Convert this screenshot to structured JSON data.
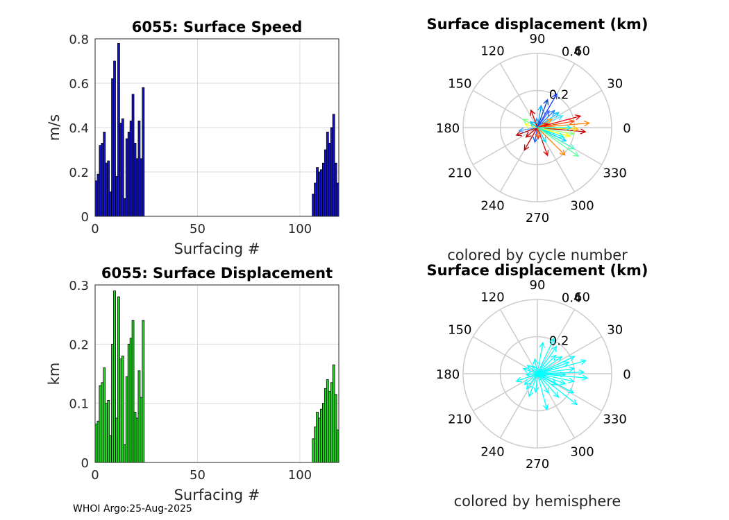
{
  "footer": "WHOI Argo:25-Aug-2025",
  "colors": {
    "speed_bar": "#1414c8",
    "disp_bar": "#22dd22",
    "hemisphere": "#00ffff"
  },
  "chart_data": [
    {
      "type": "bar",
      "title": "6055: Surface Speed",
      "xlabel": "Surfacing #",
      "ylabel": "m/s",
      "xlim": [
        0,
        119
      ],
      "ylim": [
        0,
        0.8
      ],
      "xticks": [
        0,
        50,
        100
      ],
      "yticks": [
        0,
        0.2,
        0.4,
        0.6,
        0.8
      ],
      "xtick_labels": [
        "0",
        "50",
        "100"
      ],
      "ytick_labels": [
        "0",
        "0.2",
        "0.4",
        "0.6",
        "0.8"
      ],
      "x": [
        1,
        2,
        3,
        4,
        5,
        6,
        7,
        8,
        9,
        10,
        11,
        12,
        13,
        14,
        15,
        16,
        17,
        18,
        19,
        20,
        21,
        22,
        23,
        24,
        107,
        108,
        109,
        110,
        111,
        112,
        113,
        114,
        115,
        116,
        117,
        118,
        119
      ],
      "values": [
        0.16,
        0.19,
        0.32,
        0.33,
        0.38,
        0.24,
        0.25,
        0.11,
        0.62,
        0.7,
        0.18,
        0.78,
        0.42,
        0.44,
        0.08,
        0.35,
        0.38,
        0.43,
        0.55,
        0.33,
        0.26,
        0.43,
        0.26,
        0.58,
        0.1,
        0.15,
        0.22,
        0.2,
        0.21,
        0.24,
        0.3,
        0.38,
        0.33,
        0.4,
        0.46,
        0.24,
        0.15
      ]
    },
    {
      "type": "bar",
      "title": "6055: Surface Displacement",
      "xlabel": "Surfacing #",
      "ylabel": "km",
      "xlim": [
        0,
        119
      ],
      "ylim": [
        0,
        0.3
      ],
      "xticks": [
        0,
        50,
        100
      ],
      "yticks": [
        0,
        0.1,
        0.2,
        0.3
      ],
      "xtick_labels": [
        "0",
        "50",
        "100"
      ],
      "ytick_labels": [
        "0",
        "0.1",
        "0.2",
        "0.3"
      ],
      "x": [
        1,
        2,
        3,
        4,
        5,
        6,
        7,
        8,
        9,
        10,
        11,
        12,
        13,
        14,
        15,
        16,
        17,
        18,
        19,
        20,
        21,
        22,
        23,
        24,
        107,
        108,
        109,
        110,
        111,
        112,
        113,
        114,
        115,
        116,
        117,
        118,
        119
      ],
      "values": [
        0.065,
        0.07,
        0.13,
        0.135,
        0.16,
        0.1,
        0.105,
        0.045,
        0.2,
        0.29,
        0.075,
        0.28,
        0.175,
        0.18,
        0.03,
        0.145,
        0.2,
        0.21,
        0.24,
        0.085,
        0.075,
        0.155,
        0.11,
        0.24,
        0.04,
        0.06,
        0.085,
        0.075,
        0.09,
        0.1,
        0.125,
        0.14,
        0.12,
        0.135,
        0.165,
        0.115,
        0.055
      ]
    },
    {
      "type": "polar",
      "title": "Surface displacement (km)",
      "caption": "colored by cycle number",
      "rlim": [
        0,
        0.4
      ],
      "r_tick_labels": [
        "0.2",
        "0.4"
      ],
      "theta_labels": [
        "0",
        "30",
        "60",
        "90",
        "120",
        "150",
        "180",
        "210",
        "240",
        "270",
        "300",
        "330"
      ],
      "arrows": [
        {
          "theta": 60,
          "r": 0.21,
          "color": "#1040ff"
        },
        {
          "theta": 95,
          "r": 0.05,
          "color": "#20a0ff"
        },
        {
          "theta": 110,
          "r": 0.1,
          "color": "#c00000"
        },
        {
          "theta": 55,
          "r": 0.11,
          "color": "#4060ff"
        },
        {
          "theta": 45,
          "r": 0.13,
          "color": "#2080ff"
        },
        {
          "theta": 35,
          "r": 0.14,
          "color": "#00c0ff"
        },
        {
          "theta": 25,
          "r": 0.15,
          "color": "#40e0ff"
        },
        {
          "theta": 15,
          "r": 0.24,
          "color": "#e00000"
        },
        {
          "theta": 10,
          "r": 0.2,
          "color": "#ff4000"
        },
        {
          "theta": 5,
          "r": 0.28,
          "color": "#ff8000"
        },
        {
          "theta": -5,
          "r": 0.26,
          "color": "#c00000"
        },
        {
          "theta": -2,
          "r": 0.22,
          "color": "#ffd000"
        },
        {
          "theta": -10,
          "r": 0.2,
          "color": "#80ff80"
        },
        {
          "theta": -15,
          "r": 0.18,
          "color": "#ffff00"
        },
        {
          "theta": -20,
          "r": 0.15,
          "color": "#00ffff"
        },
        {
          "theta": -25,
          "r": 0.17,
          "color": "#00d0ff"
        },
        {
          "theta": -30,
          "r": 0.23,
          "color": "#40ffc0"
        },
        {
          "theta": -45,
          "r": 0.21,
          "color": "#ff8000"
        },
        {
          "theta": -35,
          "r": 0.27,
          "color": "#60ffa0"
        },
        {
          "theta": -70,
          "r": 0.16,
          "color": "#e00000"
        },
        {
          "theta": -100,
          "r": 0.08,
          "color": "#1060ff"
        },
        {
          "theta": -120,
          "r": 0.14,
          "color": "#c00000"
        },
        {
          "theta": -140,
          "r": 0.08,
          "color": "#c00000"
        },
        {
          "theta": -160,
          "r": 0.12,
          "color": "#c00000"
        },
        {
          "theta": -170,
          "r": 0.1,
          "color": "#40a0ff"
        },
        {
          "theta": 165,
          "r": 0.07,
          "color": "#ffff40"
        },
        {
          "theta": 150,
          "r": 0.09,
          "color": "#80ff80"
        },
        {
          "theta": 140,
          "r": 0.05,
          "color": "#00c0ff"
        },
        {
          "theta": 80,
          "r": 0.12,
          "color": "#00a0ff"
        },
        {
          "theta": 70,
          "r": 0.16,
          "color": "#0040c0"
        },
        {
          "theta": 30,
          "r": 0.09,
          "color": "#ffa000"
        },
        {
          "theta": -60,
          "r": 0.09,
          "color": "#00e0ff"
        },
        {
          "theta": -85,
          "r": 0.06,
          "color": "#ff4000"
        },
        {
          "theta": 20,
          "r": 0.06,
          "color": "#ff0000"
        },
        {
          "theta": 0,
          "r": 0.18,
          "color": "#00ffff"
        }
      ]
    },
    {
      "type": "polar",
      "title": "Surface displacement (km)",
      "caption": "colored by hemisphere",
      "rlim": [
        0,
        0.4
      ],
      "r_tick_labels": [
        "0.2",
        "0.4"
      ],
      "theta_labels": [
        "0",
        "30",
        "60",
        "90",
        "120",
        "150",
        "180",
        "210",
        "240",
        "270",
        "300",
        "330"
      ],
      "arrows": [
        {
          "theta": 65,
          "r": 0.21,
          "color": "#00ffff"
        },
        {
          "theta": 80,
          "r": 0.17,
          "color": "#00ffff"
        },
        {
          "theta": 55,
          "r": 0.18,
          "color": "#00ffff"
        },
        {
          "theta": 45,
          "r": 0.14,
          "color": "#00ffff"
        },
        {
          "theta": 35,
          "r": 0.16,
          "color": "#00ffff"
        },
        {
          "theta": 25,
          "r": 0.22,
          "color": "#00ffff"
        },
        {
          "theta": 15,
          "r": 0.27,
          "color": "#00ffff"
        },
        {
          "theta": 8,
          "r": 0.2,
          "color": "#00ffff"
        },
        {
          "theta": 2,
          "r": 0.25,
          "color": "#00ffff"
        },
        {
          "theta": -5,
          "r": 0.27,
          "color": "#00ffff"
        },
        {
          "theta": -12,
          "r": 0.2,
          "color": "#00ffff"
        },
        {
          "theta": -20,
          "r": 0.16,
          "color": "#00ffff"
        },
        {
          "theta": -28,
          "r": 0.22,
          "color": "#00ffff"
        },
        {
          "theta": -38,
          "r": 0.27,
          "color": "#00ffff"
        },
        {
          "theta": -48,
          "r": 0.17,
          "color": "#00ffff"
        },
        {
          "theta": -60,
          "r": 0.12,
          "color": "#00ffff"
        },
        {
          "theta": -75,
          "r": 0.2,
          "color": "#00ffff"
        },
        {
          "theta": -95,
          "r": 0.1,
          "color": "#00ffff"
        },
        {
          "theta": -110,
          "r": 0.13,
          "color": "#00ffff"
        },
        {
          "theta": -125,
          "r": 0.1,
          "color": "#00ffff"
        },
        {
          "theta": -140,
          "r": 0.09,
          "color": "#00ffff"
        },
        {
          "theta": -160,
          "r": 0.12,
          "color": "#00ffff"
        },
        {
          "theta": -175,
          "r": 0.06,
          "color": "#00ffff"
        },
        {
          "theta": 160,
          "r": 0.08,
          "color": "#00ffff"
        },
        {
          "theta": 140,
          "r": 0.07,
          "color": "#00ffff"
        },
        {
          "theta": 120,
          "r": 0.05,
          "color": "#00ffff"
        },
        {
          "theta": 100,
          "r": 0.08,
          "color": "#00ffff"
        },
        {
          "theta": 20,
          "r": 0.18,
          "color": "#00ffff"
        },
        {
          "theta": -2,
          "r": 0.15,
          "color": "#00ffff"
        },
        {
          "theta": -30,
          "r": 0.12,
          "color": "#00ffff"
        }
      ]
    }
  ]
}
